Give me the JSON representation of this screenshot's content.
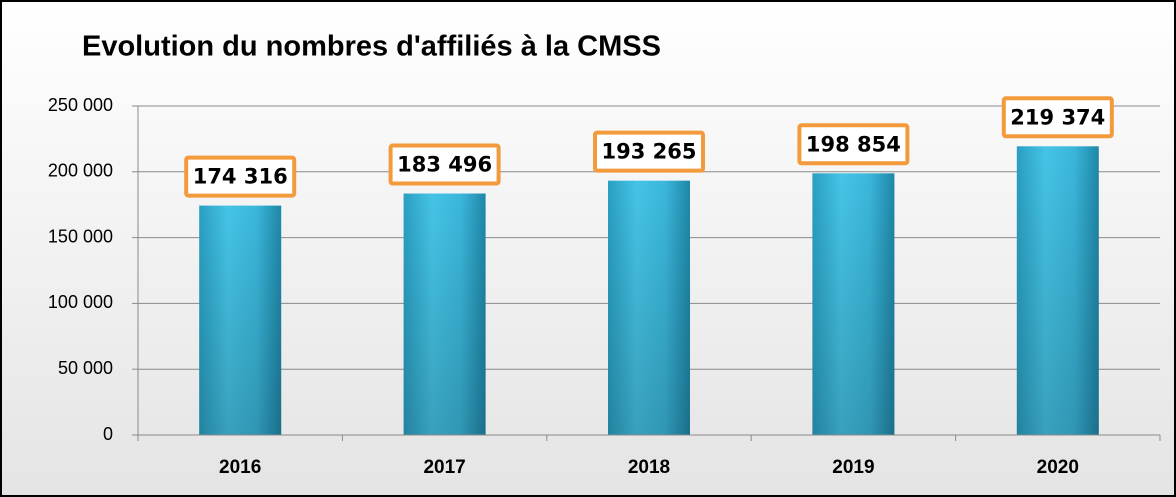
{
  "chart_data": {
    "type": "bar",
    "title": "Evolution du nombres d'affiliés à la CMSS",
    "categories": [
      "2016",
      "2017",
      "2018",
      "2019",
      "2020"
    ],
    "values": [
      174316,
      183496,
      193265,
      198854,
      219374
    ],
    "value_labels": [
      "174 316",
      "183 496",
      "193 265",
      "198 854",
      "219 374"
    ],
    "color": "#3bbde0",
    "ylim": [
      0,
      250000
    ],
    "yticks": [
      0,
      {
        "value": 50000,
        "label": "50 000"
      },
      {
        "value": 100000,
        "label": "100 000"
      },
      {
        "value": 150000,
        "label": "150 000"
      },
      {
        "value": 200000,
        "label": "200 000"
      },
      {
        "value": 250000,
        "label": "250 000"
      }
    ],
    "grid": true
  }
}
